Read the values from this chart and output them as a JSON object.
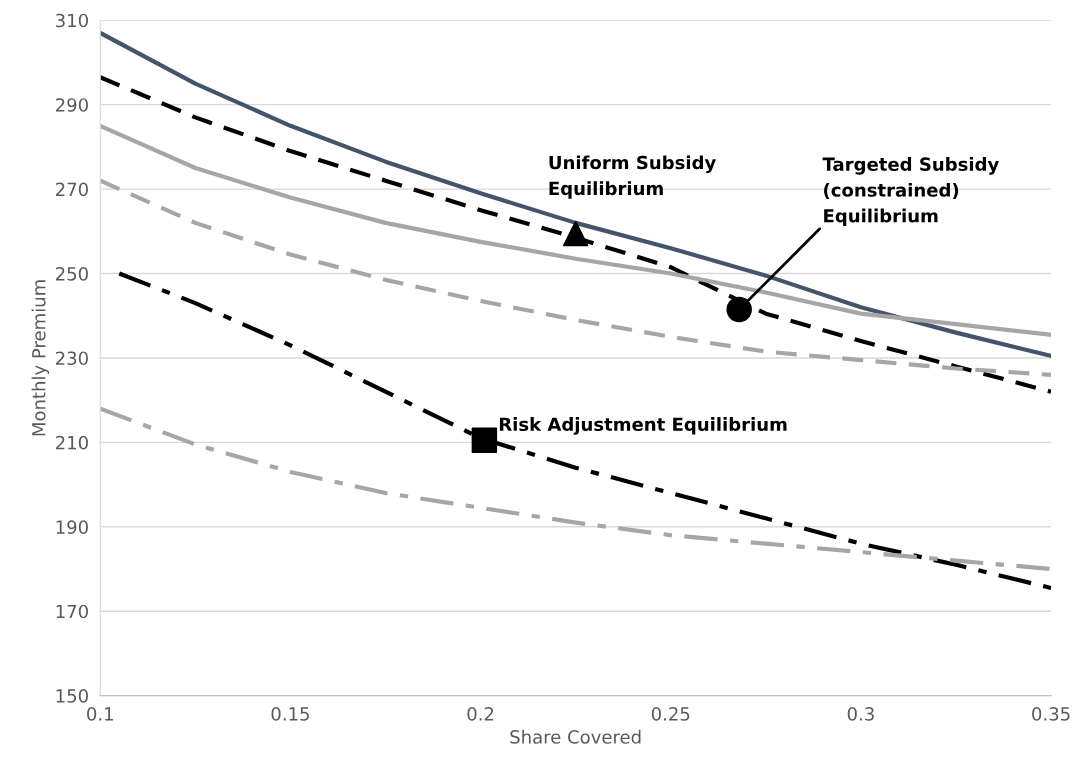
{
  "chart_data": {
    "type": "line",
    "xlabel": "Share Covered",
    "ylabel": "Monthly Premium",
    "xlim": [
      0.1,
      0.35
    ],
    "xticks": [
      0.1,
      0.15,
      0.2,
      0.25,
      0.3,
      0.35
    ],
    "ylim": [
      150,
      310
    ],
    "yticks": [
      150,
      170,
      190,
      210,
      230,
      250,
      270,
      290,
      310
    ],
    "grid": "y",
    "marker": "none",
    "x": [
      0.1,
      0.125,
      0.15,
      0.175,
      0.2,
      0.225,
      0.25,
      0.275,
      0.3,
      0.325,
      0.35
    ],
    "series": [
      {
        "color": "#44546a",
        "line_style": "solid",
        "values": [
          307,
          295,
          285,
          276.5,
          269,
          262,
          256,
          249.5,
          242,
          236,
          230.5
        ]
      },
      {
        "color": "#000000",
        "line_style": "dashed",
        "values": [
          296.5,
          287,
          279,
          272,
          265,
          258.5,
          251.5,
          240.5,
          234,
          228,
          222
        ]
      },
      {
        "color": "#a6a6a6",
        "line_style": "solid",
        "values": [
          285,
          275,
          268,
          262,
          257.5,
          253.5,
          250,
          245.5,
          240.5,
          238,
          235.5
        ]
      },
      {
        "color": "#a6a6a6",
        "line_style": "dashed",
        "values": [
          272,
          262,
          254.5,
          248.5,
          243.5,
          239,
          235,
          231.5,
          229.5,
          227.5,
          226
        ]
      },
      {
        "color": "#000000",
        "line_style": "dashdot",
        "x": [
          0.105,
          0.125,
          0.15,
          0.175,
          0.2,
          0.225,
          0.25,
          0.275,
          0.3,
          0.325,
          0.35
        ],
        "values": [
          250,
          243,
          233,
          222,
          211,
          204,
          198,
          192,
          186,
          181,
          175.5
        ]
      },
      {
        "color": "#a6a6a6",
        "line_style": "dashdot",
        "values": [
          218,
          209.5,
          203,
          198,
          194.5,
          191,
          188,
          186,
          184,
          182,
          180
        ]
      },
      {
        "type": "scatter",
        "marker": "triangle",
        "color": "#000000",
        "x": [
          0.225
        ],
        "values": [
          259.5
        ]
      },
      {
        "type": "scatter",
        "marker": "circle",
        "color": "#000000",
        "x": [
          0.268
        ],
        "values": [
          241.5
        ]
      },
      {
        "type": "scatter",
        "marker": "square",
        "color": "#000000",
        "x": [
          0.201
        ],
        "values": [
          210.5
        ]
      }
    ],
    "annotations": [
      {
        "text": "Uniform Subsidy\nEquilibrium",
        "x": 0.225,
        "y": 259.5
      },
      {
        "text": "Targeted Subsidy\n(constrained)\nEquilibrium",
        "x": 0.268,
        "y": 241.5
      },
      {
        "text": "Risk Adjustment Equilibrium",
        "x": 0.201,
        "y": 210.5
      }
    ]
  }
}
